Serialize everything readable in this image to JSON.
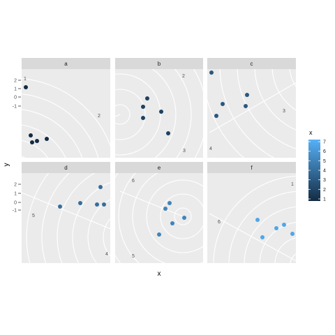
{
  "chart_data": {
    "type": "scatter",
    "coord": "polar (faceted, partial arcs)",
    "xlabel": "x",
    "ylabel": "y",
    "y_ticks": [
      -1,
      0,
      1,
      2
    ],
    "legend": {
      "title": "x",
      "placement": "right",
      "ticks": [
        1,
        2,
        3,
        4,
        5,
        6,
        7
      ],
      "color_low": "#132B43",
      "color_high": "#56B1F7"
    },
    "facets": [
      {
        "label": "a",
        "circle_labels": [
          "1",
          "2"
        ],
        "points": [
          {
            "x": 1,
            "y": 1.4
          },
          {
            "x": 1,
            "y": -0.8
          },
          {
            "x": 1,
            "y": -1.6
          },
          {
            "x": 1,
            "y": -1.3
          },
          {
            "x": 1,
            "y": -1.5
          }
        ]
      },
      {
        "label": "b",
        "circle_labels": [
          "2",
          "3"
        ],
        "points": [
          {
            "x": 2,
            "y": 0.8
          },
          {
            "x": 2,
            "y": 0.2
          },
          {
            "x": 2,
            "y": -0.3
          },
          {
            "x": 2,
            "y": -0.6
          },
          {
            "x": 2,
            "y": -1.1
          }
        ]
      },
      {
        "label": "c",
        "circle_labels": [
          "3",
          "4"
        ],
        "points": [
          {
            "x": 3,
            "y": 2.1
          },
          {
            "x": 3,
            "y": 1.0
          },
          {
            "x": 3,
            "y": 0.4
          },
          {
            "x": 3,
            "y": 0.1
          },
          {
            "x": 3,
            "y": -0.4
          }
        ]
      },
      {
        "label": "d",
        "circle_labels": [
          "5",
          "4"
        ],
        "points": [
          {
            "x": 4,
            "y": 1.7
          },
          {
            "x": 4,
            "y": -0.1
          },
          {
            "x": 4,
            "y": -0.3
          },
          {
            "x": 4,
            "y": -0.3
          },
          {
            "x": 4,
            "y": -0.5
          }
        ]
      },
      {
        "label": "e",
        "circle_labels": [
          "6",
          "5"
        ],
        "points": [
          {
            "x": 5,
            "y": 0.6
          },
          {
            "x": 5,
            "y": 0.4
          },
          {
            "x": 5,
            "y": 0.1
          },
          {
            "x": 5,
            "y": -0.2
          },
          {
            "x": 5,
            "y": -0.9
          }
        ]
      },
      {
        "label": "f",
        "circle_labels": [
          "1",
          "6"
        ],
        "points": [
          {
            "x": 6.5,
            "y": 0.5
          },
          {
            "x": 6.5,
            "y": 0.3
          },
          {
            "x": 6.5,
            "y": 0.0
          },
          {
            "x": 6.5,
            "y": -0.5
          },
          {
            "x": 6.5,
            "y": -0.6
          }
        ]
      }
    ]
  }
}
